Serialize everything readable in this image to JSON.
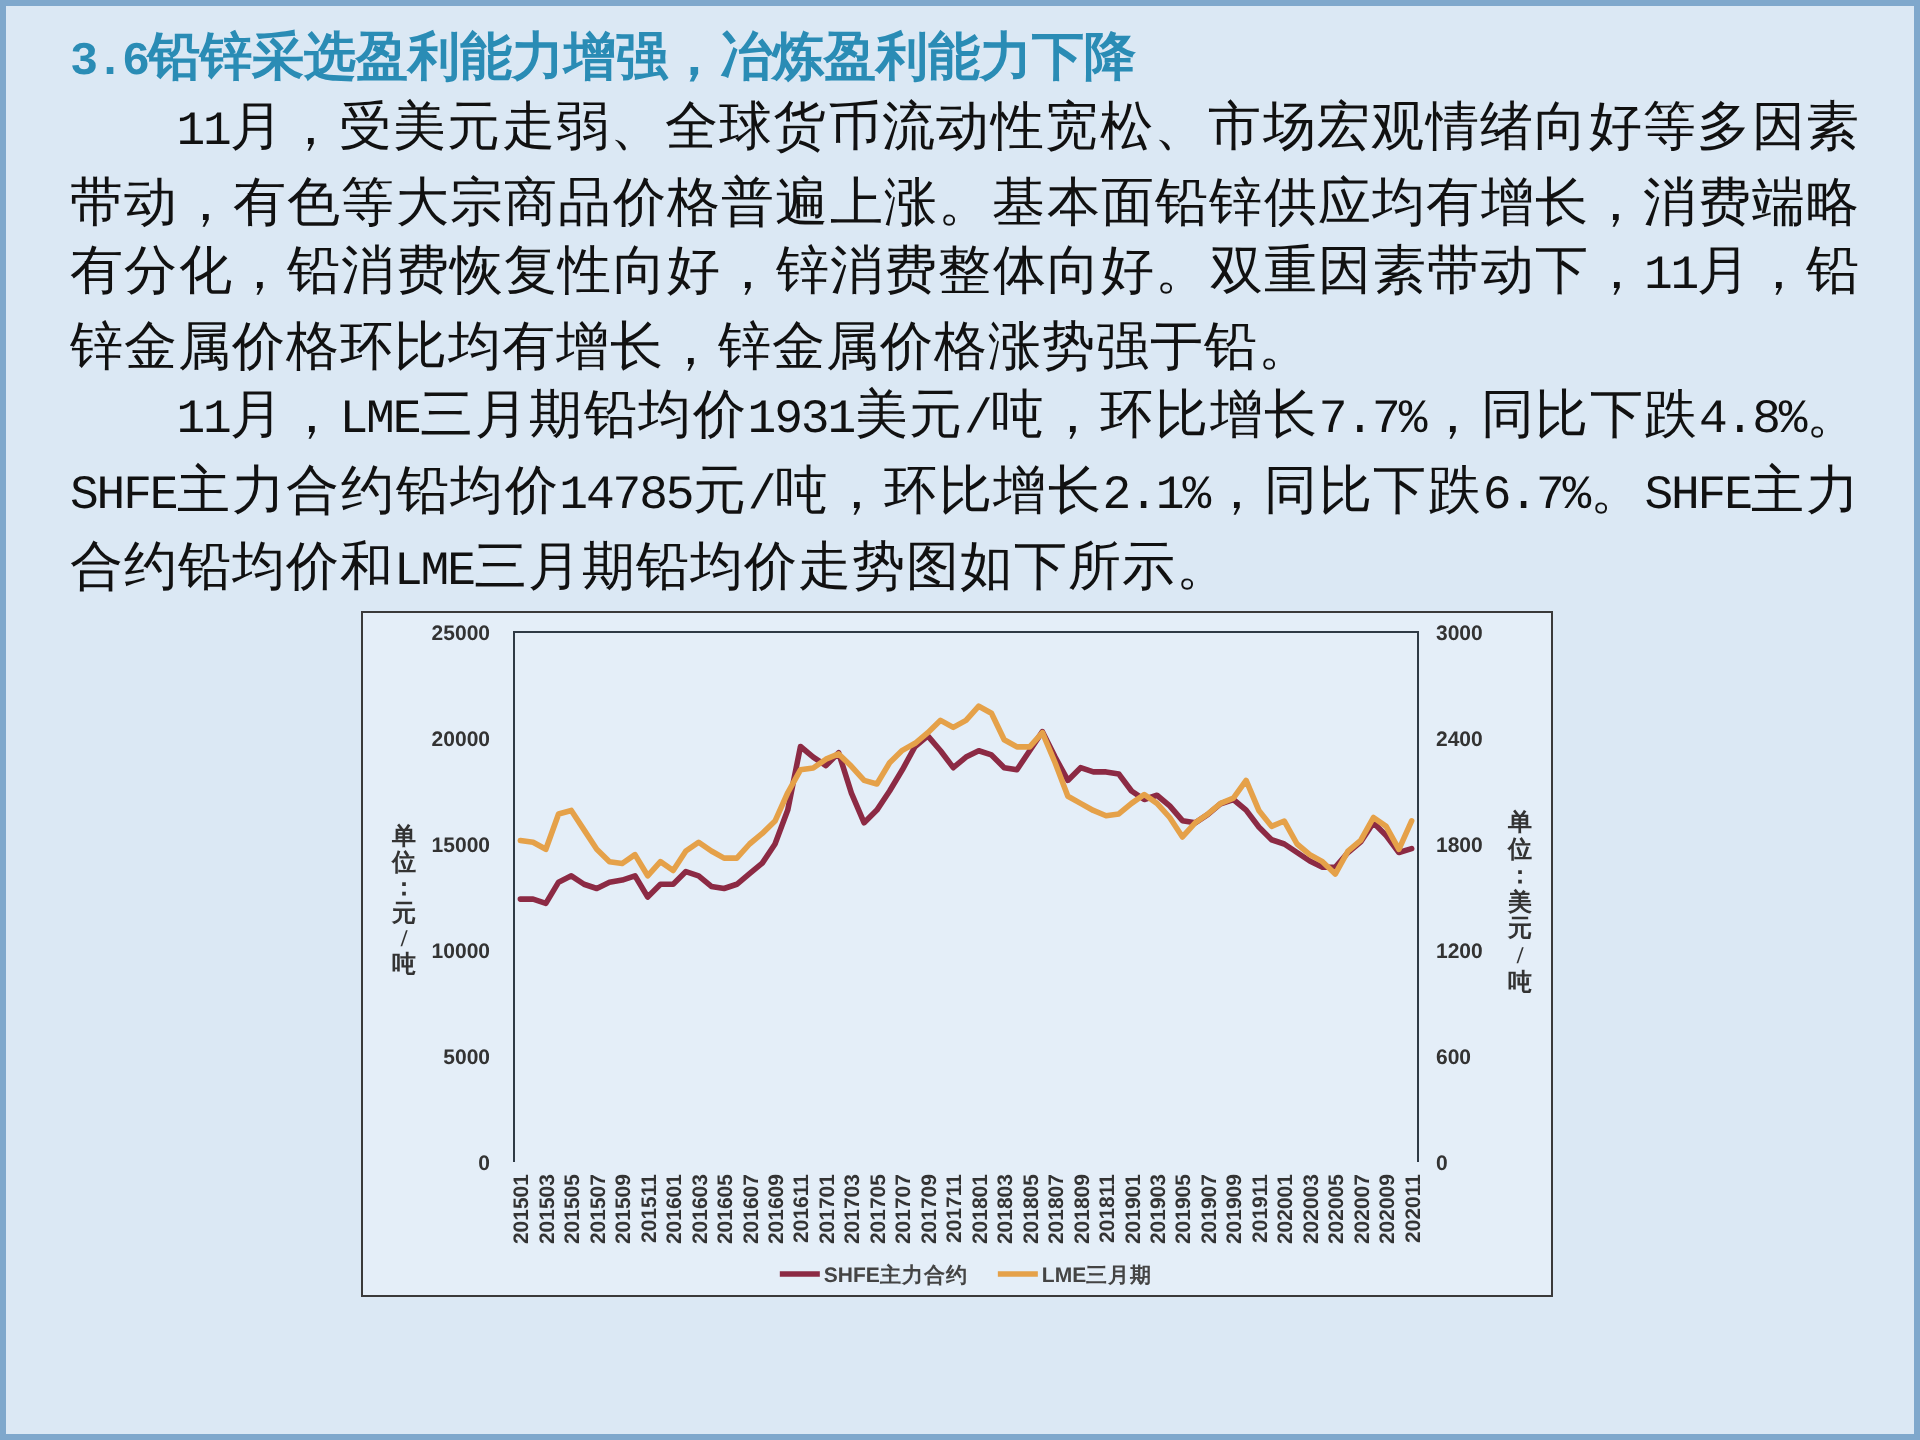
{
  "chart_data": {
    "type": "line",
    "title": "3.6铅锌采选盈利能力增强，冶炼盈利能力下降",
    "annotations": [
      "11月，受美元走弱、全球货币流动性宽松、市场宏观情绪向好等多因素带动，有色等大宗商品价格普遍上涨。基本面铅锌供应均有增长，消费端略有分化，铅消费恢复性向好，锌消费整体向好。双重因素带动下，11月，铅锌金属价格环比均有增长，锌金属价格涨势强于铅。",
      "11月，LME三月期铅均价1931美元/吨，环比增长7.7%，同比下跌4.8%。SHFE主力合约铅均价14785元/吨，环比增长2.1%，同比下跌6.7%。SHFE主力合约铅均价和LME三月期铅均价走势图如下所示。"
    ],
    "ylabel": "单位：元/吨",
    "y2label": "单位：美元/吨",
    "categories": [
      "201501",
      null,
      "201503",
      null,
      "201505",
      null,
      "201507",
      null,
      "201509",
      null,
      "201511",
      null,
      "201601",
      null,
      "201603",
      null,
      "201605",
      null,
      "201607",
      null,
      "201609",
      null,
      "201611",
      null,
      "201701",
      null,
      "201703",
      null,
      "201705",
      null,
      "201707",
      null,
      "201709",
      null,
      "201711",
      null,
      "201801",
      null,
      "201803",
      null,
      "201805",
      null,
      "201807",
      null,
      "201809",
      null,
      "201811",
      null,
      "201901",
      null,
      "201903",
      null,
      "201905",
      null,
      "201907",
      null,
      "201909",
      null,
      "201911",
      null,
      "202001",
      null,
      "202003",
      null,
      "202005",
      null,
      "202007",
      null,
      "202009",
      null,
      "202011"
    ],
    "series": [
      {
        "name": "SHFE主力合约",
        "color": "#8c2a44",
        "values": [
          12400,
          12400,
          12200,
          13200,
          13500,
          13100,
          12900,
          13200,
          13300,
          13500,
          12500,
          13100,
          13100,
          13700,
          13500,
          13000,
          12900,
          13100,
          13600,
          14100,
          15000,
          16600,
          19600,
          19100,
          18700,
          19300,
          17400,
          16000,
          16600,
          17500,
          18500,
          19600,
          20100,
          19400,
          18600,
          19100,
          19400,
          19200,
          18600,
          18500,
          19400,
          20300,
          19100,
          18000,
          18600,
          18400,
          18400,
          18300,
          17500,
          17100,
          17300,
          16800,
          16100,
          16000,
          16400,
          16900,
          17100,
          16600,
          15800,
          15200,
          15000,
          14600,
          14200,
          13900,
          13900,
          14600,
          15100,
          16000,
          15400,
          14600,
          14785
        ]
      },
      {
        "name": "LME三月期",
        "color": "#e5a149",
        "axis": "y2",
        "values": [
          1820,
          1810,
          1770,
          1970,
          1990,
          1880,
          1770,
          1700,
          1690,
          1740,
          1620,
          1700,
          1650,
          1760,
          1810,
          1760,
          1720,
          1720,
          1800,
          1860,
          1930,
          2090,
          2220,
          2230,
          2280,
          2310,
          2240,
          2160,
          2140,
          2260,
          2330,
          2370,
          2430,
          2500,
          2460,
          2500,
          2580,
          2540,
          2390,
          2350,
          2350,
          2430,
          2260,
          2070,
          2030,
          1990,
          1960,
          1970,
          2030,
          2080,
          2030,
          1950,
          1840,
          1920,
          1970,
          2030,
          2060,
          2160,
          1990,
          1900,
          1930,
          1800,
          1740,
          1700,
          1630,
          1760,
          1820,
          1950,
          1900,
          1770,
          1931
        ]
      }
    ],
    "ylim": [
      0,
      25000
    ],
    "yticks": [
      0,
      5000,
      10000,
      15000,
      20000,
      25000
    ],
    "y2lim": [
      0,
      3000
    ],
    "y2ticks": [
      0,
      600,
      1200,
      1800,
      2400,
      3000
    ],
    "legend": "bottom"
  }
}
